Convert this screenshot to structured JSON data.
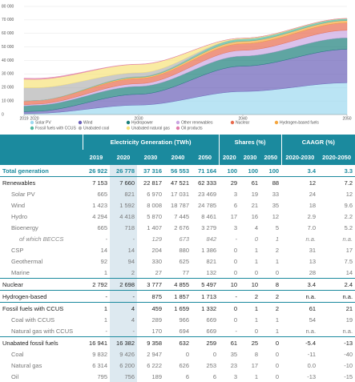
{
  "chart_data": {
    "type": "area",
    "x": [
      2019,
      2020,
      2030,
      2040,
      2050
    ],
    "xlim": [
      2019,
      2050
    ],
    "xticks": [
      2019,
      2020,
      2030,
      2040,
      2050
    ],
    "ylim": [
      0,
      80000
    ],
    "yticks": [
      0,
      {
        "value": 10000,
        "label": "10 000"
      },
      {
        "value": 20000,
        "label": "20 000"
      },
      {
        "value": 30000,
        "label": "30 000"
      },
      {
        "value": 40000,
        "label": "40 000"
      },
      {
        "value": 50000,
        "label": "50 000"
      },
      {
        "value": 60000,
        "label": "60 000"
      },
      {
        "value": 70000,
        "label": "70 000"
      },
      {
        "value": 80000,
        "label": "80 000"
      }
    ],
    "grid": true,
    "series": [
      {
        "name": "Solar PV",
        "color": "#9dd9f0",
        "values": [
          665,
          821,
          6970,
          17031,
          23469
        ]
      },
      {
        "name": "Wind",
        "color": "#6a5fb8",
        "values": [
          1423,
          1592,
          8008,
          18787,
          24785
        ]
      },
      {
        "name": "Hydropower",
        "color": "#1b7f7a",
        "values": [
          4294,
          4418,
          5870,
          7445,
          8461
        ]
      },
      {
        "name": "Other renewables",
        "color": "#caa6e2",
        "values": [
          772,
          828,
          1968,
          4258,
          5618
        ]
      },
      {
        "name": "Nuclear",
        "color": "#e86b4f",
        "values": [
          2792,
          2698,
          3777,
          4855,
          5497
        ]
      },
      {
        "name": "Hydrogen-based fuels",
        "color": "#f5a640",
        "values": [
          0,
          0,
          875,
          1857,
          1713
        ]
      },
      {
        "name": "Fossil fuels with CCUS",
        "color": "#4fb8a0",
        "values": [
          1,
          4,
          459,
          1659,
          1332
        ]
      },
      {
        "name": "Unabated coal",
        "color": "#b4b4b4",
        "values": [
          9832,
          9426,
          2947,
          0,
          0
        ]
      },
      {
        "name": "Unabated natural gas",
        "color": "#f6e27a",
        "values": [
          6314,
          6200,
          6222,
          626,
          253
        ]
      },
      {
        "name": "Oil products",
        "color": "#e07aa8",
        "values": [
          795,
          756,
          189,
          6,
          6
        ]
      }
    ]
  },
  "table": {
    "groups": [
      "Electricity Generation (TWh)",
      "Shares (%)",
      "CAAGR (%)"
    ],
    "columns": [
      "2019",
      "2020",
      "2030",
      "2040",
      "2050",
      "2020",
      "2030",
      "2050",
      "2020-2030",
      "2020-2050"
    ],
    "rows": [
      {
        "label": "Total generation",
        "cells": [
          "26 922",
          "26 778",
          "37 316",
          "56 553",
          "71 164",
          "100",
          "100",
          "100",
          "3.4",
          "3.3"
        ]
      },
      {
        "label": "Renewables",
        "cells": [
          "7 153",
          "7 660",
          "22 817",
          "47 521",
          "62 333",
          "29",
          "61",
          "88",
          "12",
          "7.2"
        ]
      },
      {
        "label": "Solar PV",
        "cells": [
          "665",
          "821",
          "6 970",
          "17 031",
          "23 469",
          "3",
          "19",
          "33",
          "24",
          "12"
        ]
      },
      {
        "label": "Wind",
        "cells": [
          "1 423",
          "1 592",
          "8 008",
          "18 787",
          "24 785",
          "6",
          "21",
          "35",
          "18",
          "9.6"
        ]
      },
      {
        "label": "Hydro",
        "cells": [
          "4 294",
          "4 418",
          "5 870",
          "7 445",
          "8 461",
          "17",
          "16",
          "12",
          "2.9",
          "2.2"
        ]
      },
      {
        "label": "Bioenergy",
        "cells": [
          "665",
          "718",
          "1 407",
          "2 676",
          "3 279",
          "3",
          "4",
          "5",
          "7.0",
          "5.2"
        ]
      },
      {
        "label": "of which BECCS",
        "cells": [
          "-",
          "-",
          "129",
          "673",
          "842",
          "-",
          "0",
          "1",
          "n.a.",
          "n.a."
        ]
      },
      {
        "label": "CSP",
        "cells": [
          "14",
          "14",
          "204",
          "880",
          "1 386",
          "0",
          "1",
          "2",
          "31",
          "17"
        ]
      },
      {
        "label": "Geothermal",
        "cells": [
          "92",
          "94",
          "330",
          "625",
          "821",
          "0",
          "1",
          "1",
          "13",
          "7.5"
        ]
      },
      {
        "label": "Marine",
        "cells": [
          "1",
          "2",
          "27",
          "77",
          "132",
          "0",
          "0",
          "0",
          "28",
          "14"
        ]
      },
      {
        "label": "Nuclear",
        "cells": [
          "2 792",
          "2 698",
          "3 777",
          "4 855",
          "5 497",
          "10",
          "10",
          "8",
          "3.4",
          "2.4"
        ]
      },
      {
        "label": "Hydrogen-based",
        "cells": [
          "-",
          "-",
          "875",
          "1 857",
          "1 713",
          "-",
          "2",
          "2",
          "n.a.",
          "n.a."
        ]
      },
      {
        "label": "Fossil fuels with CCUS",
        "cells": [
          "1",
          "4",
          "459",
          "1 659",
          "1 332",
          "0",
          "1",
          "2",
          "61",
          "21"
        ]
      },
      {
        "label": "Coal with CCUS",
        "cells": [
          "1",
          "4",
          "289",
          "966",
          "669",
          "0",
          "1",
          "1",
          "54",
          "19"
        ]
      },
      {
        "label": "Natural gas with CCUS",
        "cells": [
          "-",
          "-",
          "170",
          "694",
          "669",
          "-",
          "0",
          "1",
          "n.a.",
          "n.a."
        ]
      },
      {
        "label": "Unabated fossil fuels",
        "cells": [
          "16 941",
          "16 382",
          "9 358",
          "632",
          "259",
          "61",
          "25",
          "0",
          "-5.4",
          "-13"
        ]
      },
      {
        "label": "Coal",
        "cells": [
          "9 832",
          "9 426",
          "2 947",
          "0",
          "0",
          "35",
          "8",
          "0",
          "-11",
          "-40"
        ]
      },
      {
        "label": "Natural gas",
        "cells": [
          "6 314",
          "6 200",
          "6 222",
          "626",
          "253",
          "23",
          "17",
          "0",
          "0.0",
          "-10"
        ]
      },
      {
        "label": "Oil",
        "cells": [
          "795",
          "756",
          "189",
          "6",
          "6",
          "3",
          "1",
          "0",
          "-13",
          "-15"
        ]
      }
    ]
  }
}
